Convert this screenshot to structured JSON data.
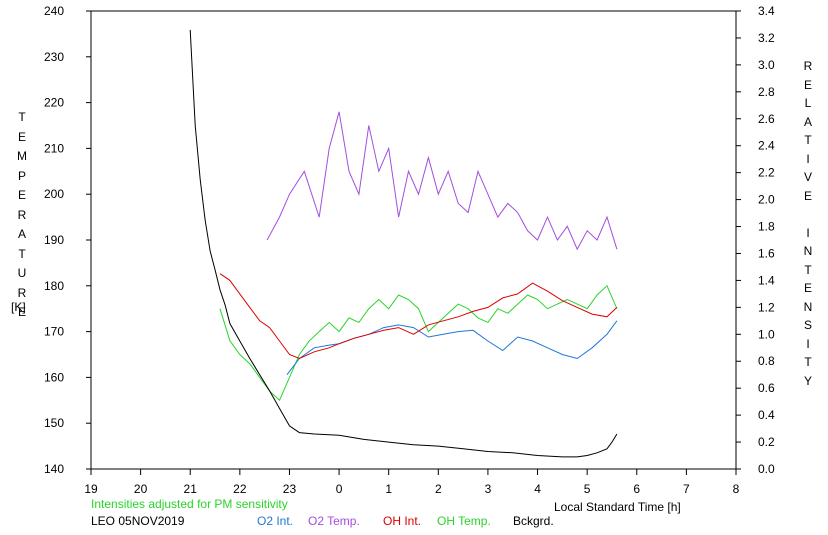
{
  "chart_data": {
    "type": "line",
    "left_axis": {
      "label": "TEMPERATURE",
      "unit": "[K]",
      "ylim": [
        140,
        240
      ],
      "ticks": [
        "140",
        "150",
        "160",
        "170",
        "180",
        "190",
        "200",
        "210",
        "220",
        "230",
        "240"
      ]
    },
    "right_axis": {
      "label": "RELATIVE INTENSITY",
      "ylim": [
        0.0,
        3.4
      ],
      "ticks": [
        "0.0",
        "0.2",
        "0.4",
        "0.6",
        "0.8",
        "1.0",
        "1.2",
        "1.4",
        "1.6",
        "1.8",
        "2.0",
        "2.2",
        "2.4",
        "2.6",
        "2.8",
        "3.0",
        "3.2",
        "3.4"
      ]
    },
    "x_axis": {
      "label": "Local Standard Time [h]",
      "range_hours": [
        19,
        32
      ],
      "ticks": [
        "19",
        "20",
        "21",
        "22",
        "23",
        "0",
        "1",
        "2",
        "3",
        "4",
        "5",
        "6",
        "7",
        "8"
      ]
    },
    "note": "Intensities adjusted for PM sensitivity",
    "site_date": "LEO 05NOV2019",
    "grid": false,
    "legend_placement": "bottom",
    "series": [
      {
        "name": "O2 Int.",
        "color": "#1f78d6",
        "axis": "right",
        "x": [
          22.95,
          23.2,
          23.5,
          23.8,
          24.0,
          24.3,
          24.6,
          24.9,
          25.2,
          25.5,
          25.8,
          26.1,
          26.4,
          26.7,
          27.0,
          27.3,
          27.6,
          27.9,
          28.2,
          28.5,
          28.8,
          29.1,
          29.4,
          29.6
        ],
        "y": [
          0.7,
          0.82,
          0.9,
          0.92,
          0.93,
          0.97,
          1.0,
          1.05,
          1.07,
          1.05,
          0.98,
          1.0,
          1.02,
          1.03,
          0.95,
          0.88,
          0.98,
          0.95,
          0.9,
          0.85,
          0.82,
          0.9,
          1.0,
          1.1
        ]
      },
      {
        "name": "O2 Temp.",
        "color": "#a24ee0",
        "axis": "left",
        "x": [
          22.55,
          22.8,
          23.0,
          23.3,
          23.6,
          23.8,
          24.0,
          24.2,
          24.4,
          24.6,
          24.8,
          25.0,
          25.2,
          25.4,
          25.6,
          25.8,
          26.0,
          26.2,
          26.4,
          26.6,
          26.8,
          27.0,
          27.2,
          27.4,
          27.6,
          27.8,
          28.0,
          28.2,
          28.4,
          28.6,
          28.8,
          29.0,
          29.2,
          29.4,
          29.6
        ],
        "y": [
          190,
          195,
          200,
          205,
          195,
          210,
          218,
          205,
          200,
          215,
          205,
          210,
          195,
          205,
          200,
          208,
          200,
          205,
          198,
          196,
          205,
          200,
          195,
          198,
          196,
          192,
          190,
          195,
          190,
          193,
          188,
          192,
          190,
          195,
          188
        ]
      },
      {
        "name": "OH Int.",
        "color": "#dd0000",
        "axis": "right",
        "x": [
          21.6,
          21.8,
          22.0,
          22.2,
          22.4,
          22.6,
          22.8,
          23.0,
          23.2,
          23.5,
          23.8,
          24.0,
          24.3,
          24.6,
          24.9,
          25.2,
          25.5,
          25.8,
          26.1,
          26.4,
          26.7,
          27.0,
          27.3,
          27.6,
          27.9,
          28.2,
          28.5,
          28.8,
          29.1,
          29.4,
          29.6
        ],
        "y": [
          1.45,
          1.4,
          1.3,
          1.2,
          1.1,
          1.05,
          0.95,
          0.85,
          0.82,
          0.87,
          0.9,
          0.93,
          0.97,
          1.0,
          1.03,
          1.05,
          1.0,
          1.07,
          1.1,
          1.13,
          1.17,
          1.2,
          1.27,
          1.3,
          1.38,
          1.32,
          1.25,
          1.2,
          1.15,
          1.13,
          1.2
        ]
      },
      {
        "name": "OH Temp.",
        "color": "#2bd32b",
        "axis": "left",
        "x": [
          21.6,
          21.8,
          22.0,
          22.2,
          22.4,
          22.6,
          22.8,
          23.0,
          23.2,
          23.4,
          23.6,
          23.8,
          24.0,
          24.2,
          24.4,
          24.6,
          24.8,
          25.0,
          25.2,
          25.4,
          25.6,
          25.8,
          26.0,
          26.2,
          26.4,
          26.6,
          26.8,
          27.0,
          27.2,
          27.4,
          27.6,
          27.8,
          28.0,
          28.2,
          28.4,
          28.6,
          28.8,
          29.0,
          29.2,
          29.4,
          29.6
        ],
        "y": [
          175,
          168,
          165,
          163,
          160,
          157,
          155,
          160,
          165,
          168,
          170,
          172,
          170,
          173,
          172,
          175,
          177,
          175,
          178,
          177,
          175,
          170,
          172,
          174,
          176,
          175,
          173,
          172,
          175,
          174,
          176,
          178,
          177,
          175,
          176,
          177,
          176,
          175,
          178,
          180,
          175
        ]
      },
      {
        "name": "Bckgrd.",
        "color": "#000000",
        "axis": "right",
        "x": [
          21.0,
          21.1,
          21.2,
          21.3,
          21.4,
          21.5,
          21.6,
          21.7,
          21.8,
          22.0,
          22.2,
          22.4,
          22.6,
          22.8,
          23.0,
          23.2,
          23.5,
          24.0,
          24.5,
          25.0,
          25.5,
          26.0,
          26.5,
          27.0,
          27.5,
          28.0,
          28.5,
          28.8,
          29.0,
          29.2,
          29.4,
          29.5,
          29.6
        ],
        "y": [
          3.26,
          2.55,
          2.15,
          1.85,
          1.62,
          1.48,
          1.33,
          1.22,
          1.08,
          0.95,
          0.82,
          0.7,
          0.58,
          0.45,
          0.32,
          0.27,
          0.26,
          0.25,
          0.22,
          0.2,
          0.18,
          0.17,
          0.15,
          0.13,
          0.12,
          0.1,
          0.09,
          0.09,
          0.1,
          0.12,
          0.15,
          0.2,
          0.26
        ]
      }
    ]
  }
}
